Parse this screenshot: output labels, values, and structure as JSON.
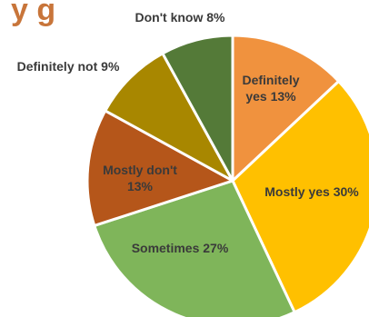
{
  "chart_data": {
    "type": "pie",
    "title_fragment": "y   g",
    "start_angle_deg": 0,
    "direction": "clockwise",
    "slices": [
      {
        "label_lines": [
          "Definitely",
          "yes 13%"
        ],
        "value": 13,
        "color": "#f0923e"
      },
      {
        "label_lines": [
          "Mostly yes 30%"
        ],
        "value": 30,
        "color": "#ffc000"
      },
      {
        "label_lines": [
          "Sometimes 27%"
        ],
        "value": 27,
        "color": "#7fb55a"
      },
      {
        "label_lines": [
          "Mostly don't",
          "13%"
        ],
        "value": 13,
        "color": "#b5561a"
      },
      {
        "label_lines": [
          "Definitely not 9%"
        ],
        "value": 9,
        "color": "#a88700"
      },
      {
        "label_lines": [
          "Don't know 8%"
        ],
        "value": 8,
        "color": "#547a38"
      }
    ]
  }
}
